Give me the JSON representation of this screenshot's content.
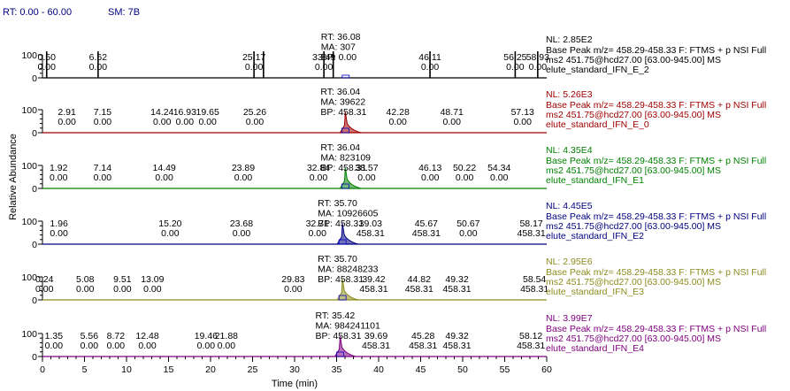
{
  "header": {
    "rt_range": "RT: 0.00 - 60.00",
    "smoothing": "SM: 7B"
  },
  "chart_data": {
    "type": "line",
    "ylabel": "Relative Abundance",
    "xlabel": "Time (min)",
    "xlim": [
      0,
      60
    ],
    "x_ticks": [
      0,
      5,
      10,
      15,
      20,
      25,
      30,
      35,
      40,
      45,
      50,
      55,
      60
    ],
    "panels": [
      {
        "nl": "NL: 2.85E2",
        "info": [
          "Base Peak m/z= 458.29-458.33 F: FTMS + p NSI Full",
          "ms2 451.75@hcd27.00 [63.00-945.00]  MS",
          "elute_standard_IFN_E_2"
        ],
        "color": "#000000",
        "y_ticks": [
          "100",
          "0"
        ],
        "main_peak": {
          "rt": 36.08,
          "labels": [
            "RT: 36.08",
            "MA: 307",
            "BP: 0.00"
          ],
          "height": 0.0
        },
        "spikes": [
          0.5,
          6.62,
          25.17,
          26.3,
          33.49,
          34.6,
          46.11,
          56.25,
          58.93
        ],
        "peaks": [
          {
            "rt": 0.5,
            "label": "0.50",
            "value": "0.00"
          },
          {
            "rt": 6.62,
            "label": "6.62",
            "value": "0.00"
          },
          {
            "rt": 25.17,
            "label": "25.17",
            "value": "0.00"
          },
          {
            "rt": 33.49,
            "label": "33.49",
            "value": "0.00"
          },
          {
            "rt": 46.11,
            "label": "46.11",
            "value": "0.00"
          },
          {
            "rt": 56.25,
            "label": "56.25",
            "value": "0.00"
          },
          {
            "rt": 58.93,
            "label": "58.93",
            "value": "0.00"
          }
        ]
      },
      {
        "nl": "NL: 5.26E3",
        "info": [
          "Base Peak m/z= 458.29-458.33 F: FTMS + p NSI Full",
          "ms2 451.75@hcd27.00 [63.00-945.00]  MS",
          "elute_standard_IFN_E_0"
        ],
        "color": "#a00000",
        "y_ticks": [
          "100",
          "0"
        ],
        "main_peak": {
          "rt": 36.04,
          "labels": [
            "RT: 36.04",
            "MA: 39622",
            "BP: 458.31"
          ],
          "height": 0.9
        },
        "peaks": [
          {
            "rt": 2.91,
            "label": "2.91",
            "value": "0.00"
          },
          {
            "rt": 7.15,
            "label": "7.15",
            "value": "0.00"
          },
          {
            "rt": 14.24,
            "label": "14.24",
            "value": "0.00"
          },
          {
            "rt": 16.93,
            "label": "16.93",
            "value": "0.00"
          },
          {
            "rt": 19.65,
            "label": "19.65",
            "value": "0.00"
          },
          {
            "rt": 25.26,
            "label": "25.26",
            "value": "0.00"
          },
          {
            "rt": 42.28,
            "label": "42.28",
            "value": "0.00"
          },
          {
            "rt": 48.71,
            "label": "48.71",
            "value": "0.00"
          },
          {
            "rt": 57.13,
            "label": "57.13",
            "value": "0.00"
          }
        ]
      },
      {
        "nl": "NL: 4.35E4",
        "info": [
          "Base Peak m/z= 458.29-458.33 F: FTMS + p NSI Full",
          "ms2 451.75@hcd27.00 [63.00-945.00]  MS",
          "elute_standard_IFN_E1"
        ],
        "color": "#008000",
        "y_ticks": [
          "100",
          "0"
        ],
        "main_peak": {
          "rt": 36.04,
          "labels": [
            "RT: 36.04",
            "MA: 823109",
            "BP: 458.31"
          ],
          "height": 0.9
        },
        "peaks": [
          {
            "rt": 1.92,
            "label": "1.92",
            "value": "0.00"
          },
          {
            "rt": 7.14,
            "label": "7.14",
            "value": "0.00"
          },
          {
            "rt": 14.49,
            "label": "14.49",
            "value": "0.00"
          },
          {
            "rt": 23.89,
            "label": "23.89",
            "value": "0.00"
          },
          {
            "rt": 32.84,
            "label": "32.84",
            "value": "0.00"
          },
          {
            "rt": 38.57,
            "label": "38.57",
            "value": "0.00"
          },
          {
            "rt": 46.13,
            "label": "46.13",
            "value": "0.00"
          },
          {
            "rt": 50.22,
            "label": "50.22",
            "value": "0.00"
          },
          {
            "rt": 54.34,
            "label": "54.34",
            "value": "0.00"
          }
        ]
      },
      {
        "nl": "NL: 4.45E5",
        "info": [
          "Base Peak m/z= 458.29-458.33 F: FTMS + p NSI Full",
          "ms2 451.75@hcd27.00 [63.00-945.00]  MS",
          "elute_standard_IFN_E2"
        ],
        "color": "#000080",
        "y_ticks": [
          "100",
          "0"
        ],
        "main_peak": {
          "rt": 35.7,
          "labels": [
            "RT: 35.70",
            "MA: 10926605",
            "BP: 458.31"
          ],
          "height": 0.9
        },
        "peaks": [
          {
            "rt": 1.96,
            "label": "1.96",
            "value": "0.00"
          },
          {
            "rt": 15.2,
            "label": "15.20",
            "value": "0.00"
          },
          {
            "rt": 23.68,
            "label": "23.68",
            "value": "0.00"
          },
          {
            "rt": 32.71,
            "label": "32.71",
            "value": "0.00"
          },
          {
            "rt": 39.03,
            "label": "39.03",
            "value": "458.31"
          },
          {
            "rt": 45.67,
            "label": "45.67",
            "value": "458.31"
          },
          {
            "rt": 50.67,
            "label": "50.67",
            "value": "0.00"
          },
          {
            "rt": 58.17,
            "label": "58.17",
            "value": "458.31"
          }
        ]
      },
      {
        "nl": "NL: 2.95E6",
        "info": [
          "Base Peak m/z= 458.29-458.33 F: FTMS + p NSI Full",
          "ms2 451.75@hcd27.00 [63.00-945.00]  MS",
          "elute_standard_IFN_E3"
        ],
        "color": "#8c8c1e",
        "y_ticks": [
          "100",
          "0"
        ],
        "main_peak": {
          "rt": 35.7,
          "labels": [
            "RT: 35.70",
            "MA: 88248233",
            "BP: 458.31"
          ],
          "height": 0.9
        },
        "peaks": [
          {
            "rt": 0.24,
            "label": "0.24",
            "value": "0.00"
          },
          {
            "rt": 5.08,
            "label": "5.08",
            "value": "0.00"
          },
          {
            "rt": 9.51,
            "label": "9.51",
            "value": "0.00"
          },
          {
            "rt": 13.09,
            "label": "13.09",
            "value": "0.00"
          },
          {
            "rt": 29.83,
            "label": "29.83",
            "value": "0.00"
          },
          {
            "rt": 39.42,
            "label": "39.42",
            "value": "458.31"
          },
          {
            "rt": 44.82,
            "label": "44.82",
            "value": "458.31"
          },
          {
            "rt": 49.32,
            "label": "49.32",
            "value": "458.31"
          },
          {
            "rt": 58.54,
            "label": "58.54",
            "value": "458.31"
          }
        ]
      },
      {
        "nl": "NL: 3.99E7",
        "info": [
          "Base Peak m/z= 458.29-458.33 F: FTMS + p NSI Full",
          "ms2 451.75@hcd27.00 [63.00-945.00]  MS",
          "elute_standard_IFN_E4"
        ],
        "color": "#800080",
        "y_ticks": [
          "100",
          "0"
        ],
        "main_peak": {
          "rt": 35.42,
          "labels": [
            "RT: 35.42",
            "MA: 984241101",
            "BP: 458.31"
          ],
          "height": 0.9
        },
        "peaks": [
          {
            "rt": 1.35,
            "label": "1.35",
            "value": "0.00"
          },
          {
            "rt": 5.56,
            "label": "5.56",
            "value": "0.00"
          },
          {
            "rt": 8.72,
            "label": "8.72",
            "value": "0.00"
          },
          {
            "rt": 12.48,
            "label": "12.48",
            "value": "0.00"
          },
          {
            "rt": 19.46,
            "label": "19.46",
            "value": "0.00"
          },
          {
            "rt": 21.88,
            "label": "21.88",
            "value": "0.00"
          },
          {
            "rt": 39.69,
            "label": "39.69",
            "value": "458.31"
          },
          {
            "rt": 45.28,
            "label": "45.28",
            "value": "458.31"
          },
          {
            "rt": 49.32,
            "label": "49.32",
            "value": "458.31"
          },
          {
            "rt": 58.12,
            "label": "58.12",
            "value": "458.31"
          }
        ]
      }
    ]
  }
}
